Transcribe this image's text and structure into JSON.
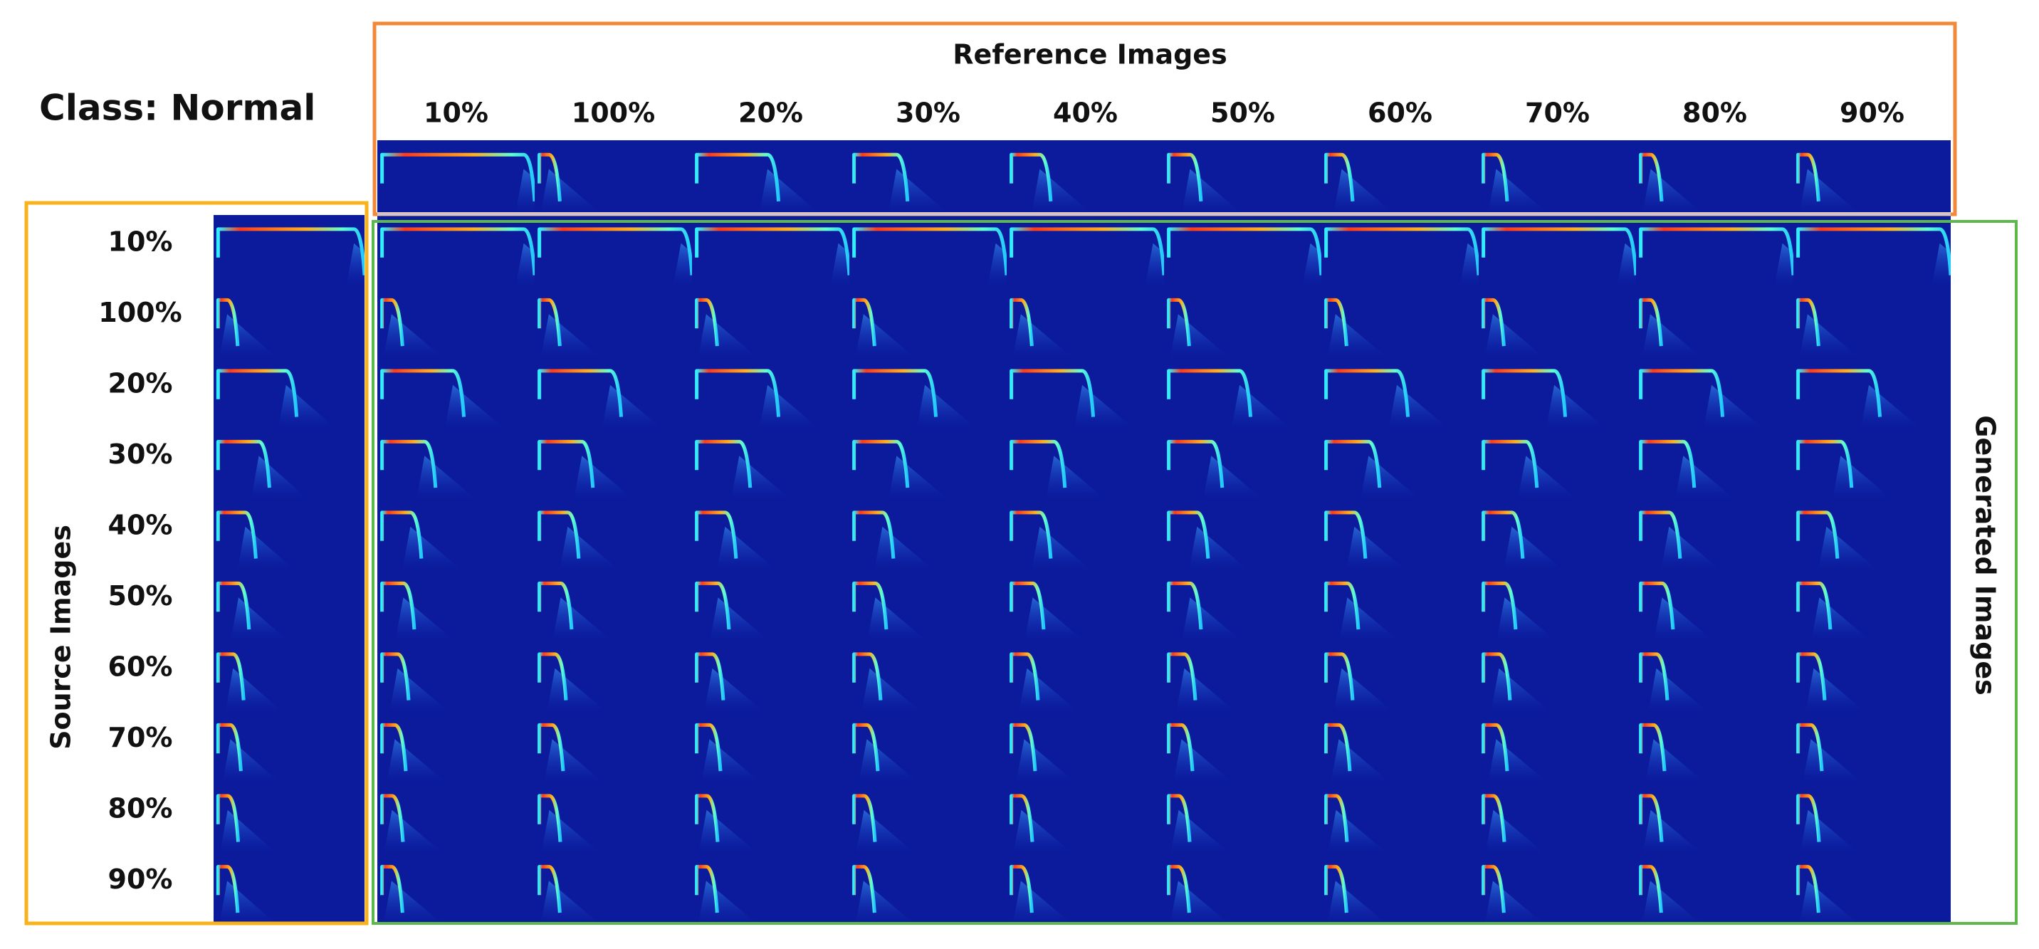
{
  "title": "Class: Normal",
  "reference": {
    "title": "Reference Images",
    "labels": [
      "10%",
      "100%",
      "20%",
      "30%",
      "40%",
      "50%",
      "60%",
      "70%",
      "80%",
      "90%"
    ]
  },
  "source": {
    "title": "Source Images",
    "labels": [
      "10%",
      "100%",
      "20%",
      "30%",
      "40%",
      "50%",
      "60%",
      "70%",
      "80%",
      "90%"
    ]
  },
  "generated": {
    "title": "Generated Images"
  }
}
